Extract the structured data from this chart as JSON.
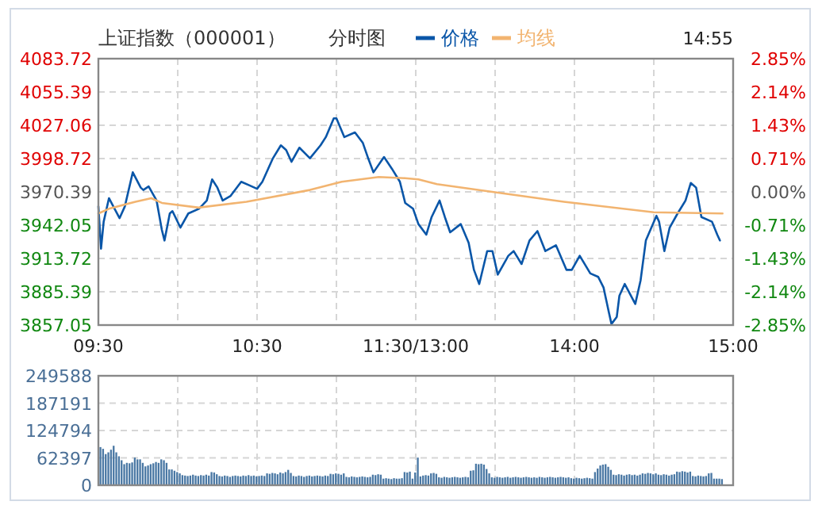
{
  "chart_data": [
    {
      "type": "line",
      "title": "上证指数（000001）",
      "subtitle": "分时图",
      "annotations": [
        "14:55"
      ],
      "legend": "top",
      "grid": true,
      "categories": [
        "09:30",
        null,
        null,
        null,
        null,
        null,
        null,
        null,
        null,
        null,
        null,
        null,
        null,
        null,
        null,
        null,
        null,
        null,
        null,
        null,
        null,
        null,
        null,
        null,
        null,
        null,
        null,
        null,
        null,
        null,
        null,
        null,
        null,
        null,
        null,
        null,
        null,
        null,
        null,
        null,
        null,
        null,
        null,
        null,
        null,
        null,
        null,
        null,
        null,
        null,
        null,
        null,
        null,
        null,
        null,
        null,
        null,
        null,
        null,
        null,
        "10:30",
        null,
        null,
        null,
        null,
        null,
        null,
        null,
        null,
        null,
        null,
        null,
        null,
        null,
        null,
        null,
        null,
        null,
        null,
        null,
        null,
        null,
        null,
        null,
        null,
        null,
        null,
        null,
        null,
        null,
        null,
        null,
        null,
        null,
        null,
        null,
        null,
        null,
        null,
        null,
        null,
        null,
        null,
        null,
        null,
        null,
        null,
        null,
        null,
        null,
        null,
        null,
        null,
        null,
        null,
        null,
        null,
        null,
        null,
        null,
        "11:30/13:00",
        null,
        null,
        null,
        null,
        null,
        null,
        null,
        null,
        null,
        null,
        null,
        null,
        null,
        null,
        null,
        null,
        null,
        null,
        null,
        null,
        null,
        null,
        null,
        null,
        null,
        null,
        null,
        null,
        null,
        null,
        null,
        null,
        null,
        null,
        null,
        null,
        null,
        null,
        null,
        null,
        null,
        null,
        null,
        null,
        null,
        null,
        null,
        null,
        null,
        null,
        null,
        null,
        null,
        null,
        null,
        null,
        null,
        null,
        null,
        "14:00",
        null,
        null,
        null,
        null,
        null,
        null,
        null,
        null,
        null,
        null,
        null,
        null,
        null,
        null,
        null,
        null,
        null,
        null,
        null,
        null,
        null,
        null,
        null,
        null,
        null,
        null,
        null,
        null,
        null,
        null,
        null,
        null,
        null,
        null,
        null,
        null,
        null,
        null,
        null,
        null,
        null,
        null,
        null,
        null,
        null,
        null,
        null,
        null,
        null,
        null,
        null,
        null,
        null,
        null,
        null,
        null,
        null,
        null,
        null,
        "15:00"
      ],
      "ylim": [
        3857.05,
        4083.72
      ],
      "yticks": [
        3857.05,
        3885.39,
        3913.72,
        3942.05,
        3970.39,
        3998.72,
        4027.06,
        4055.39,
        4083.72
      ],
      "y2lim": [
        -2.85,
        2.85
      ],
      "y2ticks": [
        {
          "value": -2.85,
          "label": "-2.85%"
        },
        {
          "value": -2.14,
          "label": "-2.14%"
        },
        {
          "value": -1.43,
          "label": "-1.43%"
        },
        {
          "value": -0.71,
          "label": "-0.71%"
        },
        {
          "value": 0,
          "label": "0.00%"
        },
        {
          "value": 0.71,
          "label": "0.71%"
        },
        {
          "value": 1.43,
          "label": "1.43%"
        },
        {
          "value": 2.14,
          "label": "2.14%"
        },
        {
          "value": 2.85,
          "label": "2.85%"
        }
      ],
      "series": [
        {
          "name": "价格",
          "color": "#0a56a8",
          "values": [
            3958,
            3922,
            3945,
            null,
            3965,
            null,
            null,
            null,
            3948,
            null,
            3958,
            null,
            null,
            3987,
            null,
            null,
            3974,
            3972,
            null,
            3975,
            null,
            null,
            3963,
            null,
            3938,
            3929,
            null,
            3952,
            3954,
            null,
            null,
            3940,
            null,
            null,
            3952,
            null,
            null,
            null,
            3956,
            null,
            null,
            3963,
            null,
            3981,
            null,
            3974,
            null,
            3963,
            null,
            null,
            3967,
            null,
            null,
            null,
            3979,
            null,
            null,
            3976,
            null,
            null,
            3973,
            null,
            3979,
            null,
            null,
            null,
            3999,
            null,
            null,
            4010,
            null,
            4006,
            null,
            3996,
            null,
            null,
            4008,
            null,
            null,
            null,
            3999,
            null,
            null,
            null,
            4010,
            null,
            4017,
            null,
            null,
            4033,
            4033,
            null,
            null,
            4017,
            null,
            null,
            null,
            4021,
            null,
            null,
            4012,
            null,
            3999,
            null,
            3987,
            null,
            null,
            null,
            4000,
            null,
            null,
            3990,
            null,
            null,
            3979,
            null,
            3961,
            null,
            null,
            3956,
            null,
            3943,
            null,
            null,
            3934,
            null,
            3949,
            null,
            null,
            3963,
            null,
            3949,
            null,
            3936,
            null,
            null,
            null,
            3943,
            null,
            null,
            3927,
            null,
            3904,
            null,
            3892,
            null,
            null,
            3920,
            null,
            3920,
            null,
            3900,
            null,
            null,
            null,
            3916,
            null,
            3920,
            null,
            null,
            3909,
            null,
            null,
            3929,
            null,
            null,
            3937,
            null,
            null,
            3920,
            null,
            null,
            null,
            3925,
            null,
            null,
            null,
            3904,
            null,
            3904,
            null,
            null,
            3916,
            null,
            null,
            null,
            3901,
            null,
            null,
            3898,
            null,
            3889,
            null,
            3868,
            3858,
            null,
            3864,
            3882,
            null,
            3892,
            null,
            null,
            null,
            3875,
            null,
            3895,
            null,
            3929,
            null,
            null,
            null,
            3950,
            3945,
            null,
            3920,
            null,
            3940,
            null,
            null,
            3952,
            null,
            null,
            3963,
            null,
            3978,
            null,
            3974,
            null,
            3949,
            null,
            null,
            null,
            3945,
            null,
            3934,
            3929,
            null,
            null,
            null,
            null,
            null
          ]
        },
        {
          "name": "均线",
          "color": "#f2b470",
          "values": [
            3952,
            null,
            null,
            null,
            3956,
            null,
            null,
            null,
            null,
            null,
            null,
            null,
            null,
            null,
            3962,
            null,
            null,
            null,
            null,
            null,
            3965,
            null,
            null,
            null,
            3961,
            null,
            null,
            null,
            null,
            null,
            null,
            null,
            null,
            null,
            null,
            null,
            null,
            null,
            3957,
            null,
            null,
            null,
            null,
            null,
            null,
            null,
            null,
            null,
            null,
            null,
            null,
            null,
            null,
            null,
            null,
            null,
            3962,
            null,
            null,
            null,
            null,
            null,
            null,
            null,
            null,
            null,
            null,
            null,
            null,
            null,
            null,
            null,
            null,
            null,
            null,
            null,
            null,
            null,
            null,
            null,
            3972,
            null,
            null,
            null,
            null,
            null,
            null,
            null,
            null,
            null,
            null,
            null,
            3979,
            null,
            null,
            null,
            null,
            null,
            null,
            null,
            null,
            null,
            null,
            null,
            null,
            null,
            3983,
            null,
            null,
            null,
            null,
            null,
            null,
            null,
            null,
            null,
            3982,
            null,
            null,
            null,
            null,
            3981,
            null,
            null,
            null,
            null,
            null,
            null,
            3977,
            null,
            null,
            null,
            null,
            null,
            null,
            null,
            null,
            null,
            null,
            null,
            null,
            null,
            null,
            null,
            null,
            null,
            null,
            null,
            null,
            null,
            3970,
            null,
            null,
            null,
            null,
            null,
            null,
            null,
            null,
            null,
            null,
            null,
            null,
            null,
            null,
            null,
            null,
            null,
            null,
            null,
            null,
            null,
            null,
            null,
            null,
            null,
            3962,
            null,
            null,
            null,
            null,
            null,
            null,
            null,
            null,
            null,
            null,
            null,
            null,
            null,
            null,
            null,
            null,
            null,
            null,
            null,
            null,
            null,
            null,
            null,
            null,
            null,
            null,
            null,
            null,
            null,
            null,
            null,
            null,
            null,
            3953,
            null,
            null,
            null,
            null,
            null,
            null,
            null,
            null,
            null,
            null,
            null,
            null,
            null,
            null,
            null,
            null,
            null,
            null,
            null,
            null,
            null,
            null,
            null,
            null,
            null,
            3952,
            null,
            null,
            null,
            null
          ]
        }
      ]
    },
    {
      "type": "bar",
      "color": "#4a78a4",
      "grid": true,
      "tick_labels": "y",
      "categories": [
        null,
        null,
        null,
        null,
        null,
        null,
        null,
        null,
        null,
        null,
        null,
        null,
        null,
        null,
        null,
        null,
        null,
        null,
        null,
        null,
        null,
        null,
        null,
        null,
        null,
        null,
        null,
        null,
        null,
        null,
        null,
        null,
        null,
        null,
        null,
        null,
        null,
        null,
        null,
        null,
        null,
        null,
        null,
        null,
        null,
        null,
        null,
        null,
        null,
        null,
        null,
        null,
        null,
        null,
        null,
        null,
        null,
        null,
        null,
        null,
        null,
        null,
        null,
        null,
        null,
        null,
        null,
        null,
        null,
        null,
        null,
        null,
        null,
        null,
        null,
        null,
        null,
        null,
        null,
        null,
        null,
        null,
        null,
        null,
        null,
        null,
        null,
        null,
        null,
        null,
        null,
        null,
        null,
        null,
        null,
        null,
        null,
        null,
        null,
        null,
        null,
        null,
        null,
        null,
        null,
        null,
        null,
        null,
        null,
        null,
        null,
        null,
        null,
        null,
        null,
        null,
        null,
        null,
        null,
        null,
        null,
        null,
        null,
        null,
        null,
        null,
        null,
        null,
        null,
        null,
        null,
        null,
        null,
        null,
        null,
        null,
        null,
        null,
        null,
        null,
        null,
        null,
        null,
        null,
        null,
        null,
        null,
        null,
        null,
        null,
        null,
        null,
        null,
        null,
        null,
        null,
        null,
        null,
        null,
        null,
        null,
        null,
        null,
        null,
        null,
        null,
        null,
        null,
        null,
        null,
        null,
        null,
        null,
        null,
        null,
        null,
        null,
        null,
        null,
        null,
        null,
        null,
        null,
        null,
        null,
        null,
        null,
        null,
        null,
        null,
        null,
        null,
        null,
        null,
        null,
        null,
        null,
        null,
        null,
        null,
        null,
        null,
        null,
        null,
        null,
        null,
        null,
        null,
        null,
        null,
        null,
        null,
        null,
        null,
        null,
        null,
        null,
        null,
        null,
        null,
        null,
        null,
        null,
        null,
        null,
        null,
        null,
        null,
        null,
        null,
        null,
        null,
        null,
        null,
        null,
        null,
        null,
        null,
        null,
        null,
        null
      ],
      "ylim": [
        0,
        249588
      ],
      "yticks": [
        0,
        62397,
        124794,
        187191,
        249588
      ],
      "values": [
        87000,
        83000,
        71000,
        75000,
        81000,
        90000,
        75000,
        66000,
        57000,
        48000,
        51000,
        50000,
        52000,
        63000,
        59000,
        59000,
        51000,
        43000,
        45000,
        48000,
        50000,
        53000,
        51000,
        59000,
        57000,
        51000,
        36000,
        36000,
        33000,
        30000,
        27000,
        23000,
        22000,
        21000,
        22000,
        24000,
        22000,
        21000,
        23000,
        22000,
        24000,
        22000,
        30000,
        29000,
        25000,
        21000,
        20000,
        22000,
        21000,
        19000,
        21000,
        22000,
        21000,
        20000,
        22000,
        21000,
        23000,
        21000,
        22000,
        20000,
        21000,
        22000,
        21000,
        27000,
        26000,
        28000,
        27000,
        25000,
        29000,
        27000,
        30000,
        35000,
        28000,
        21000,
        20000,
        22000,
        21000,
        19000,
        21000,
        22000,
        20000,
        21000,
        22000,
        21000,
        20000,
        22000,
        21000,
        26000,
        25000,
        27000,
        26000,
        24000,
        27000,
        19000,
        18000,
        20000,
        19000,
        18000,
        19000,
        20000,
        19000,
        18000,
        19000,
        24000,
        23000,
        25000,
        24000,
        15000,
        16000,
        15000,
        14000,
        16000,
        15000,
        15000,
        16000,
        30000,
        29000,
        31000,
        15000,
        29000,
        63000,
        20000,
        22000,
        23000,
        22000,
        27000,
        28000,
        26000,
        18000,
        17000,
        19000,
        18000,
        17000,
        18000,
        19000,
        18000,
        17000,
        18000,
        19000,
        18000,
        33000,
        34000,
        49000,
        48000,
        49000,
        47000,
        37000,
        27000,
        18000,
        17000,
        19000,
        18000,
        17000,
        18000,
        19000,
        17000,
        18000,
        19000,
        18000,
        17000,
        18000,
        19000,
        18000,
        17000,
        18000,
        17000,
        19000,
        18000,
        17000,
        18000,
        19000,
        18000,
        17000,
        18000,
        19000,
        18000,
        17000,
        18000,
        16000,
        15000,
        17000,
        16000,
        15000,
        16000,
        17000,
        16000,
        15000,
        30000,
        38000,
        45000,
        47000,
        48000,
        42000,
        35000,
        24000,
        23000,
        25000,
        24000,
        22000,
        24000,
        25000,
        23000,
        24000,
        22000,
        24000,
        27000,
        26000,
        28000,
        27000,
        25000,
        27000,
        24000,
        23000,
        25000,
        24000,
        22000,
        24000,
        25000,
        31000,
        30000,
        32000,
        31000,
        29000,
        31000,
        21000,
        20000,
        22000,
        21000,
        20000,
        21000,
        27000,
        28000,
        15000,
        15000,
        15000,
        14000,
        null,
        null,
        null,
        null,
        null
      ]
    }
  ]
}
